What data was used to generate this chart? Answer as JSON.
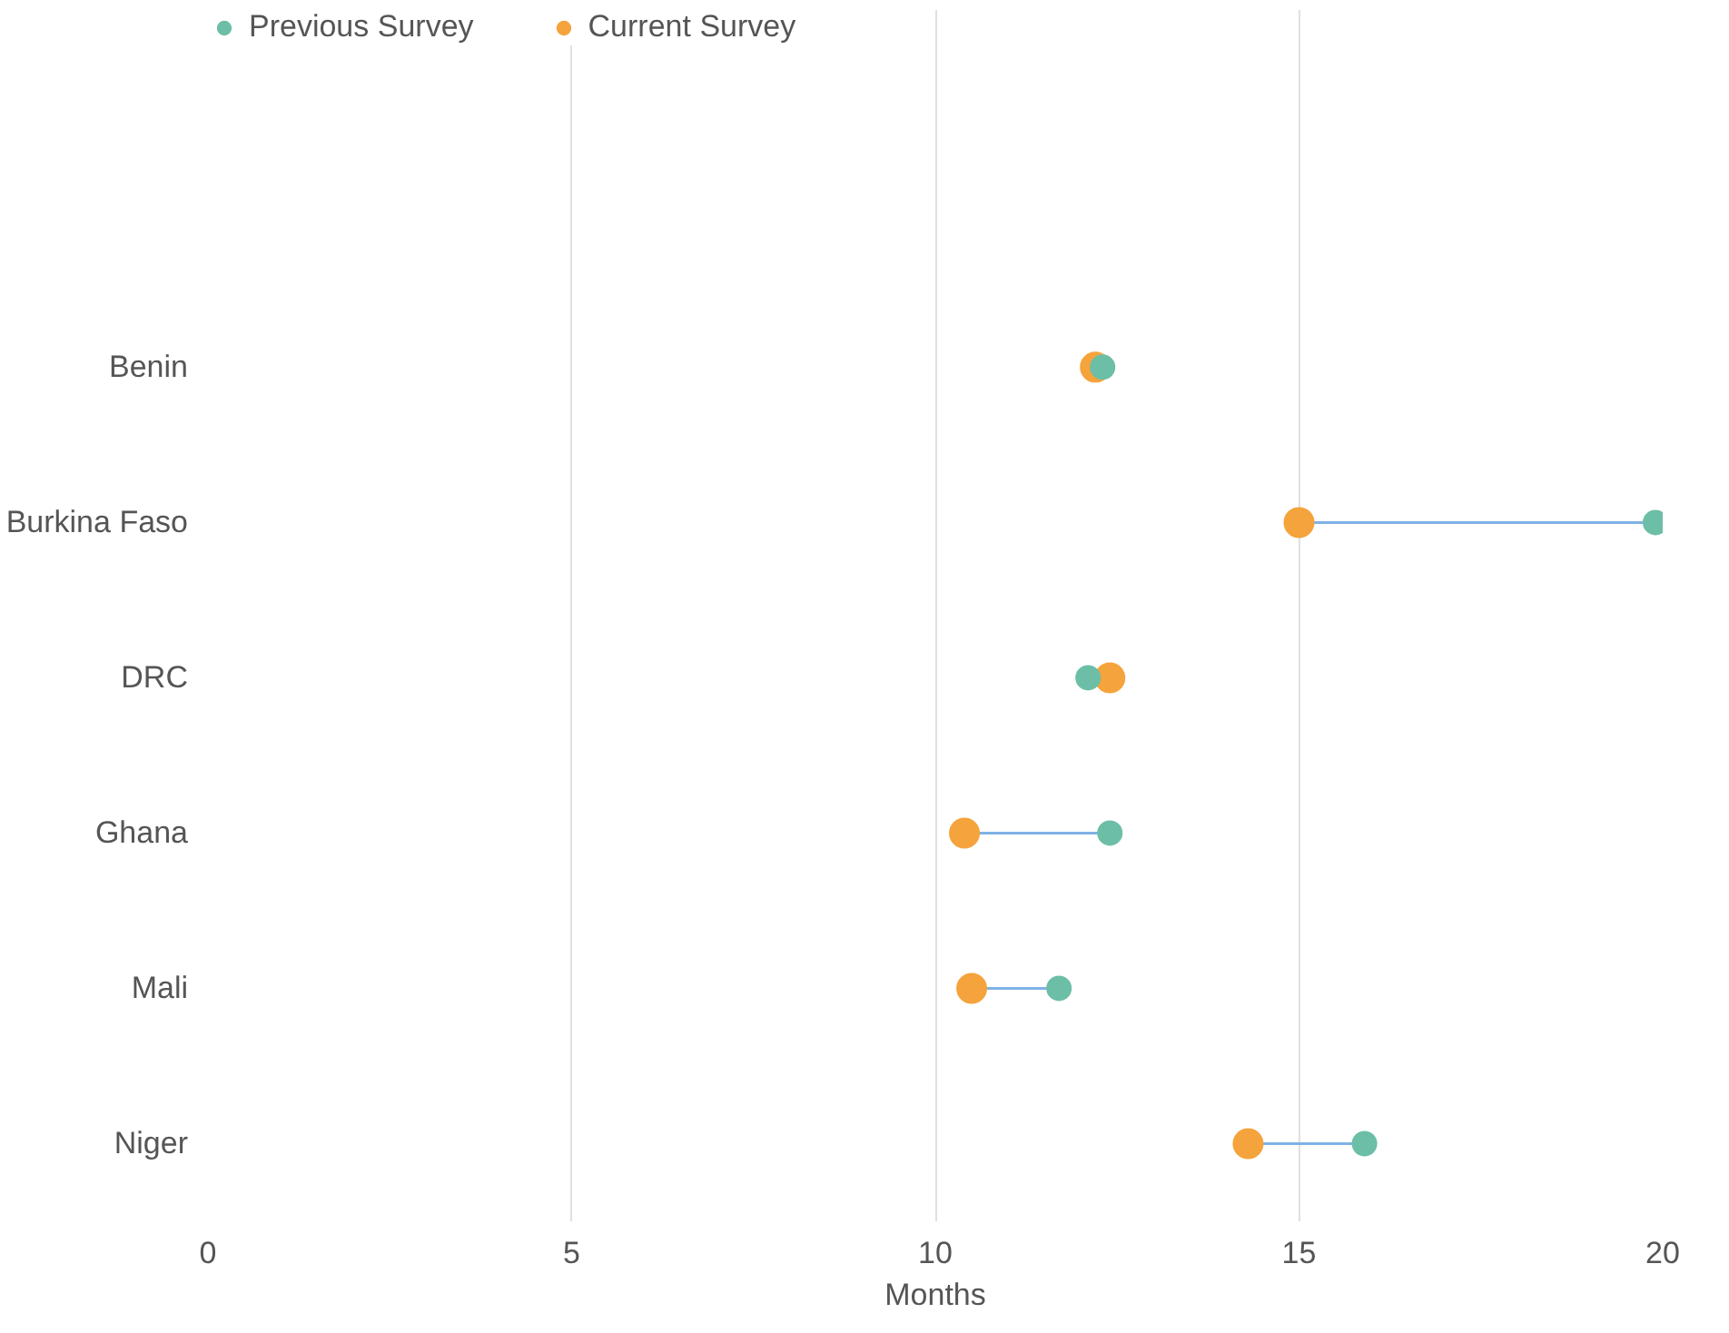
{
  "chart_data": {
    "type": "scatter",
    "xlabel": "Months",
    "categories": [
      "Benin",
      "Burkina Faso",
      "DRC",
      "Ghana",
      "Mali",
      "Niger"
    ],
    "orientation": "horizontal",
    "xlim": [
      0,
      20
    ],
    "xticks": [
      0,
      5,
      10,
      15,
      20
    ],
    "grid": "x",
    "legend": "top left",
    "marker": "circle",
    "series": [
      {
        "name": "Previous Survey",
        "color": "#6cbfa6",
        "values": [
          12.3,
          19.9,
          12.1,
          12.4,
          11.7,
          15.9
        ]
      },
      {
        "name": "Current Survey",
        "color": "#f5a33c",
        "values": [
          12.2,
          15.0,
          12.4,
          10.4,
          10.5,
          14.3
        ]
      }
    ]
  }
}
